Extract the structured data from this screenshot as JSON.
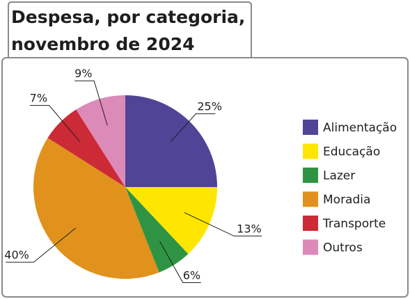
{
  "chart_data": {
    "type": "pie",
    "title_lines": [
      "Despesa, por categoria,",
      "novembro de 2024"
    ],
    "legend_position": "right",
    "slices": [
      {
        "name": "Alimentação",
        "value": 25,
        "label": "25%",
        "color": "#4f4496"
      },
      {
        "name": "Educação",
        "value": 13,
        "label": "13%",
        "color": "#ffe600"
      },
      {
        "name": "Lazer",
        "value": 6,
        "label": "6%",
        "color": "#2e9444"
      },
      {
        "name": "Moradia",
        "value": 40,
        "label": "40%",
        "color": "#e0921c"
      },
      {
        "name": "Transporte",
        "value": 7,
        "label": "7%",
        "color": "#cc2a36"
      },
      {
        "name": "Outros",
        "value": 9,
        "label": "9%",
        "color": "#dc8ab8"
      }
    ]
  }
}
